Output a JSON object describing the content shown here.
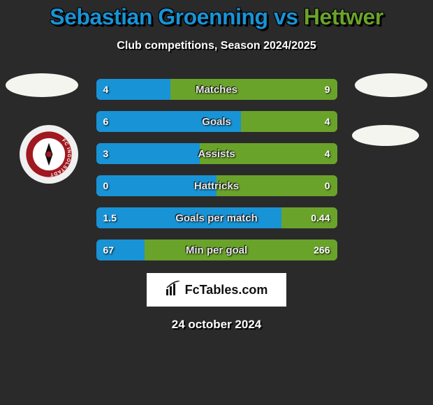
{
  "title": {
    "left": "Sebastian Groenning",
    "middle": " vs ",
    "right": "Hettwer",
    "left_color": "#1893d6",
    "right_color": "#6aa32a",
    "middle_color": "#1893d6"
  },
  "subtitle": "Club competitions, Season 2024/2025",
  "date": "24 october 2024",
  "background_color": "#2a2a2a",
  "series": {
    "left_color": "#1893d6",
    "right_color": "#6aa32a",
    "rows": [
      {
        "label": "Matches",
        "left": "4",
        "right": "9",
        "left_pct": 31,
        "right_pct": 69
      },
      {
        "label": "Goals",
        "left": "6",
        "right": "4",
        "left_pct": 60,
        "right_pct": 40
      },
      {
        "label": "Assists",
        "left": "3",
        "right": "4",
        "left_pct": 43,
        "right_pct": 57
      },
      {
        "label": "Hattricks",
        "left": "0",
        "right": "0",
        "left_pct": 50,
        "right_pct": 50
      },
      {
        "label": "Goals per match",
        "left": "1.5",
        "right": "0.44",
        "left_pct": 77,
        "right_pct": 23
      },
      {
        "label": "Min per goal",
        "left": "67",
        "right": "266",
        "left_pct": 20,
        "right_pct": 80
      }
    ]
  },
  "footer_brand": "FcTables.com",
  "logos": {
    "left_top_color": "#f5f5f0",
    "right_top_color": "#f3f3ee",
    "right_mid_color": "#f3f3ee",
    "badge_bg": "#f0f0f0",
    "badge_ring": "#a01820",
    "badge_inner": "#ffffff",
    "badge_text": "FC INGOLSTADT"
  }
}
